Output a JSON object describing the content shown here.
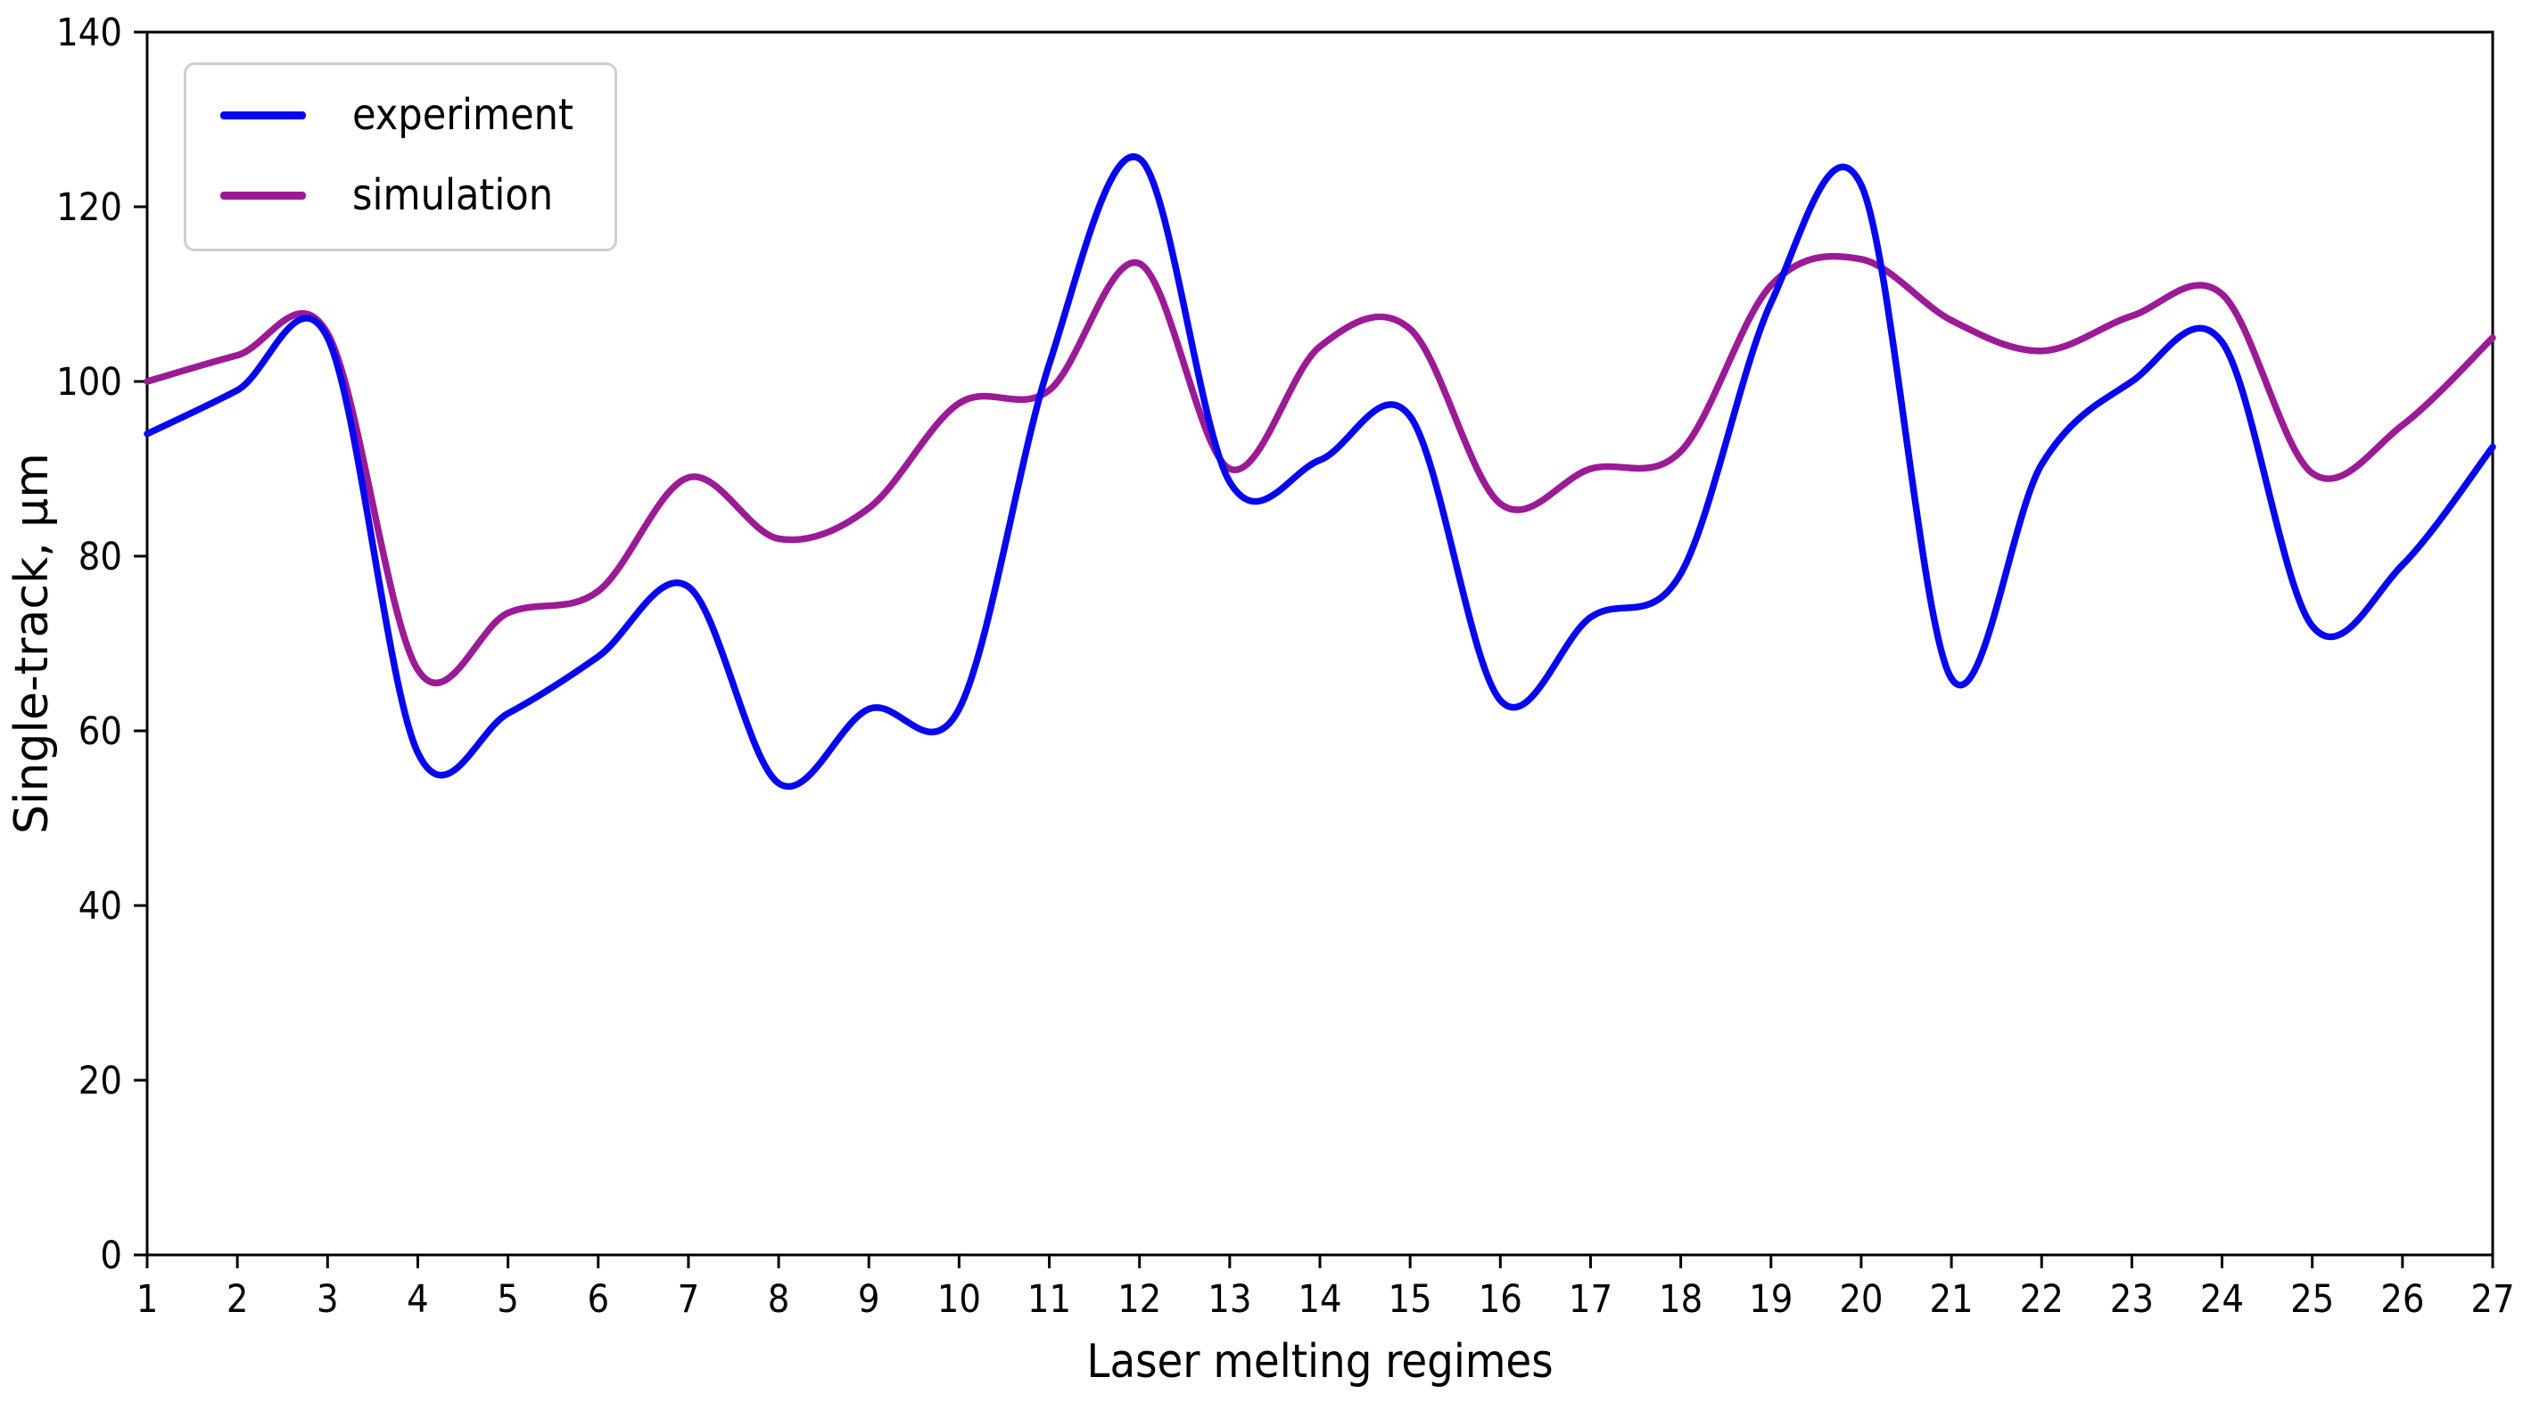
{
  "figure": {
    "background": "#ffffff"
  },
  "labels": {
    "xlabel": "Laser melting regimes",
    "ylabel": "Single-track, μm"
  },
  "legend": {
    "position": "upper left",
    "items": [
      {
        "label": "experiment",
        "color": "#0707ef"
      },
      {
        "label": "simulation",
        "color": "#9b1a96"
      }
    ]
  },
  "axes": {
    "x_range": [
      1,
      27
    ],
    "y_range": [
      0,
      140
    ],
    "x_ticks": [
      1,
      2,
      3,
      4,
      5,
      6,
      7,
      8,
      9,
      10,
      11,
      12,
      13,
      14,
      15,
      16,
      17,
      18,
      19,
      20,
      21,
      22,
      23,
      24,
      25,
      26,
      27
    ],
    "y_ticks": [
      0,
      20,
      40,
      60,
      80,
      100,
      120,
      140
    ],
    "spine_color": "#000000"
  },
  "chart_data": {
    "type": "line",
    "title": "",
    "xlabel": "Laser melting regimes",
    "ylabel": "Single-track, μm",
    "x": [
      1,
      2,
      3,
      4,
      5,
      6,
      7,
      8,
      9,
      10,
      11,
      12,
      13,
      14,
      15,
      16,
      17,
      18,
      19,
      20,
      21,
      22,
      23,
      24,
      25,
      26,
      27
    ],
    "series": [
      {
        "name": "experiment",
        "color": "#0707ef",
        "values": [
          94,
          99,
          105,
          57.5,
          62,
          68.5,
          76.5,
          54,
          62.5,
          62.5,
          102,
          125.5,
          88.5,
          91,
          96,
          63.5,
          73,
          78,
          109,
          122.5,
          66,
          90.5,
          100,
          104.5,
          72,
          79,
          92.5
        ]
      },
      {
        "name": "simulation",
        "color": "#9b1a96",
        "values": [
          100,
          103,
          105.5,
          67,
          73.5,
          76,
          89,
          82,
          85.5,
          97.5,
          99,
          113.5,
          90,
          104,
          106,
          86,
          90,
          92,
          111,
          114,
          107,
          103.5,
          107.5,
          110,
          89.5,
          95,
          105
        ]
      }
    ],
    "xlim": [
      1,
      27
    ],
    "ylim": [
      0,
      140
    ],
    "grid": false,
    "legend_position": "upper left",
    "smoothing": "cubic-spline"
  }
}
